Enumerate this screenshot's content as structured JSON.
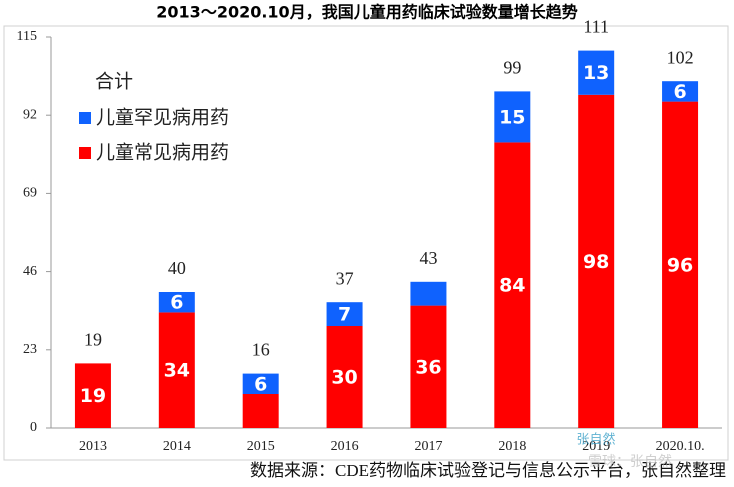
{
  "chart_data": {
    "type": "stacked_bar",
    "title": "2013～2020.10月，我国儿童用药临床试验数量增长趋势",
    "total_label": "合计",
    "source": "数据来源：CDE药物临床试验登记与信息公示平台，张自然整理",
    "watermarks": [
      "张自然",
      "雪球：张自然"
    ],
    "categories": [
      "2013",
      "2014",
      "2015",
      "2016",
      "2017",
      "2018",
      "2019",
      "2020.10."
    ],
    "series": [
      {
        "name": "儿童常见病用药",
        "color": "#ff0000",
        "values": [
          19,
          34,
          10,
          30,
          36,
          84,
          98,
          96
        ],
        "value_labels": [
          "19",
          "34",
          null,
          "30",
          "36",
          "84",
          "98",
          "96"
        ]
      },
      {
        "name": "儿童罕见病用药",
        "color": "#0f62fe",
        "values": [
          null,
          6,
          6,
          7,
          7,
          15,
          13,
          6
        ],
        "value_labels": [
          null,
          "6",
          "6",
          "7",
          null,
          "15",
          "13",
          "6"
        ]
      }
    ],
    "totals": [
      19,
      40,
      16,
      37,
      43,
      99,
      111,
      102
    ],
    "ylim": [
      0,
      115
    ],
    "yticks": [
      0,
      23,
      46,
      69,
      92,
      115
    ]
  }
}
